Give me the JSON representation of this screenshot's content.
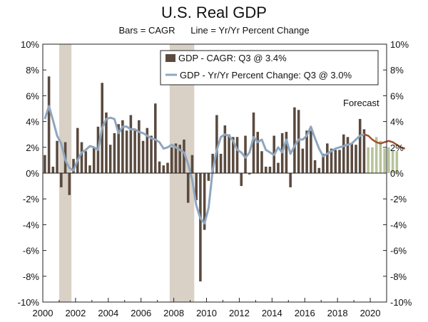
{
  "chart_data": {
    "type": "bar+line",
    "title": "U.S. Real GDP",
    "subtitle": "Bars = CAGR      Line = Yr/Yr Percent Change",
    "ylim": [
      -10,
      10
    ],
    "y_ticks_left": [
      "10%",
      "8%",
      "6%",
      "4%",
      "2%",
      "0%",
      "-2%",
      "-4%",
      "-6%",
      "-8%",
      "-10%"
    ],
    "y_ticks_right": [
      "10%",
      "8%",
      "6%",
      "4%",
      "2%",
      "0%",
      "-2%",
      "-4%",
      "-6%",
      "-8%",
      "-10%"
    ],
    "x_ticks": [
      "2000",
      "2002",
      "2004",
      "2006",
      "2008",
      "2010",
      "2012",
      "2014",
      "2016",
      "2018",
      "2020"
    ],
    "x_start": 2000,
    "x_end": 2021,
    "recessions": [
      [
        2001.0,
        2001.75
      ],
      [
        2007.75,
        2009.25
      ]
    ],
    "annotation": "Forecast",
    "legend": [
      {
        "label": "GDP - CAGR: Q3 @ 3.4%",
        "color": "#5a4a3f"
      },
      {
        "label": "GDP - Yr/Yr Percent Change: Q3 @ 3.0%",
        "color": "#8fa6bf"
      }
    ],
    "colors": {
      "bars_actual": "#5a4a3f",
      "bars_forecast": "#b7c39a",
      "line_actual": "#8fa6bf",
      "line_forecast": "#a0522d",
      "recession": "#d9d1c6"
    },
    "bars_actual": [
      1.4,
      7.5,
      0.5,
      2.5,
      -1.1,
      2.4,
      -1.7,
      1.1,
      3.5,
      2.4,
      1.7,
      0.6,
      2.0,
      3.6,
      7.0,
      4.7,
      2.2,
      3.1,
      3.8,
      4.1,
      3.3,
      4.5,
      3.3,
      4.1,
      2.5,
      3.5,
      2.9,
      5.4,
      0.9,
      0.6,
      0.8,
      2.0,
      2.3,
      2.2,
      2.6,
      -2.3,
      1.4,
      -2.1,
      -8.4,
      -4.4,
      -0.6,
      1.5,
      4.5,
      1.5,
      3.7,
      3.0,
      2.8,
      2.8,
      -1.0,
      2.9,
      -0.1,
      4.7,
      3.2,
      1.7,
      0.5,
      0.5,
      2.9,
      0.8,
      3.1,
      3.2,
      -1.1,
      5.1,
      4.9,
      1.9,
      3.3,
      3.3,
      1.0,
      0.4,
      1.5,
      2.3,
      1.9,
      1.8,
      1.8,
      3.0,
      2.8,
      2.3,
      2.2,
      4.2,
      3.4
    ],
    "bars_forecast": [
      2.0,
      2.0,
      2.8,
      2.5,
      1.9,
      2.0,
      1.7,
      1.7
    ],
    "line_actual": [
      4.2,
      5.2,
      4.1,
      2.9,
      2.3,
      1.0,
      0.4,
      0.2,
      1.0,
      1.6,
      1.8,
      2.1,
      2.0,
      1.8,
      3.5,
      4.2,
      4.3,
      4.2,
      3.1,
      3.6,
      3.6,
      3.4,
      3.4,
      3.2,
      3.1,
      2.9,
      2.7,
      2.6,
      2.4,
      1.9,
      2.0,
      2.2,
      2.0,
      1.8,
      1.6,
      0.7,
      -0.5,
      -2.5,
      -3.5,
      -3.9,
      -2.7,
      0.2,
      1.8,
      2.8,
      3.0,
      2.9,
      2.5,
      1.8,
      1.6,
      1.2,
      1.6,
      2.8,
      2.4,
      2.6,
      1.8,
      1.6,
      1.4,
      2.0,
      1.6,
      2.6,
      1.5,
      2.1,
      2.6,
      2.6,
      2.9,
      3.6,
      2.7,
      1.9,
      1.3,
      1.5,
      1.7,
      1.9,
      2.0,
      2.1,
      2.2,
      2.3,
      2.6,
      2.9,
      3.0
    ],
    "line_forecast": [
      3.0,
      2.9,
      2.6,
      2.4,
      2.3,
      2.4,
      2.5,
      2.4,
      2.2,
      2.0,
      1.9
    ]
  }
}
